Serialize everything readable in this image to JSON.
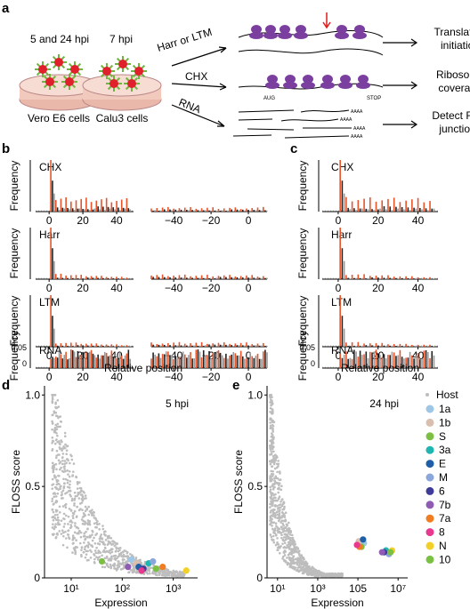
{
  "panel_letters": {
    "a": "a",
    "b": "b",
    "c": "c",
    "d": "d",
    "e": "e"
  },
  "panel_a": {
    "dish1_label": "5 and 24 hpi",
    "dish2_label": "7 hpi",
    "cell1_label": "Vero E6 cells",
    "cell2_label": "Calu3 cells",
    "arrows": [
      "Harr or LTM",
      "CHX",
      "RNA"
    ],
    "outcomes": [
      [
        "Translation",
        "initiation"
      ],
      [
        "Ribosome",
        "coverage"
      ],
      [
        "Detect RNA",
        "junctions"
      ]
    ],
    "start_codon": "AUG",
    "stop_codon": "STOP",
    "polya": "AAAA",
    "colors": {
      "ribosome": "#7b3fa0",
      "red_arrow": "#e01b1b",
      "virion": "#e0202a",
      "spike": "#6fb53f",
      "dish": "#f2c9bd"
    }
  },
  "metagene": {
    "ylabel": "Frequency",
    "xlabel": "Relative position",
    "rows": [
      "CHX",
      "Harr",
      "LTM",
      "RNA"
    ],
    "ticks_left_b": [
      "0",
      "20",
      "40"
    ],
    "ticks_right_b": [
      "−40",
      "−20",
      "0"
    ],
    "ticks_c": [
      "0",
      "20",
      "40"
    ],
    "rna_yticks": [
      "0",
      "0.05"
    ],
    "colors": {
      "frame0": "#e8542a",
      "frame1": "#222222",
      "frame2": "#9a9a9a"
    }
  },
  "chart_data": [
    {
      "type": "scatter",
      "panel": "d",
      "annotation": "5 hpi",
      "xlabel": "Expression",
      "ylabel": "FLOSS score",
      "x_scale": "log10",
      "xlim": [
        3,
        3000
      ],
      "ylim": [
        0,
        1.05
      ],
      "x_ticks": [
        "10¹",
        "10²",
        "10³"
      ],
      "y_ticks": [
        "0",
        "0.5",
        "1.0"
      ],
      "host_color": "#bdbdbd",
      "series": [
        {
          "name": "1a",
          "color": "#9ec6e6",
          "x": 150,
          "y": 0.1
        },
        {
          "name": "1b",
          "color": "#d8bfb0",
          "x": 190,
          "y": 0.08
        },
        {
          "name": "S",
          "color": "#7bc043",
          "x": 40,
          "y": 0.09
        },
        {
          "name": "3a",
          "color": "#1fb5b0",
          "x": 330,
          "y": 0.08
        },
        {
          "name": "E",
          "color": "#1f5fa8",
          "x": 210,
          "y": 0.06
        },
        {
          "name": "M",
          "color": "#8aa6dd",
          "x": 400,
          "y": 0.09
        },
        {
          "name": "6",
          "color": "#3e3b99",
          "x": 260,
          "y": 0.05
        },
        {
          "name": "7b",
          "color": "#8e5bb5",
          "x": 130,
          "y": 0.06
        },
        {
          "name": "7a",
          "color": "#f07d22",
          "x": 620,
          "y": 0.06
        },
        {
          "name": "8",
          "color": "#e8388f",
          "x": 240,
          "y": 0.04
        },
        {
          "name": "N",
          "color": "#f2d027",
          "x": 1800,
          "y": 0.04
        },
        {
          "name": "10",
          "color": "#7ac143",
          "x": 460,
          "y": 0.05
        }
      ]
    },
    {
      "type": "scatter",
      "panel": "e",
      "annotation": "24 hpi",
      "xlabel": "Expression",
      "ylabel": "FLOSS score",
      "x_scale": "log10",
      "xlim": [
        3,
        30000000
      ],
      "ylim": [
        0,
        1.05
      ],
      "x_ticks": [
        "10¹",
        "10³",
        "105",
        "10⁷"
      ],
      "y_ticks": [
        "0",
        "0.5",
        "1.0"
      ],
      "host_color": "#bdbdbd",
      "series": [
        {
          "name": "1a",
          "color": "#9ec6e6",
          "x": 200000,
          "y": 0.19
        },
        {
          "name": "1b",
          "color": "#d8bfb0",
          "x": 110000,
          "y": 0.2
        },
        {
          "name": "S",
          "color": "#7bc043",
          "x": 150000,
          "y": 0.17
        },
        {
          "name": "3a",
          "color": "#1fb5b0",
          "x": 2500000,
          "y": 0.15
        },
        {
          "name": "E",
          "color": "#1f5fa8",
          "x": 180000,
          "y": 0.21
        },
        {
          "name": "M",
          "color": "#8aa6dd",
          "x": 3500000,
          "y": 0.13
        },
        {
          "name": "6",
          "color": "#3e3b99",
          "x": 2000000,
          "y": 0.14
        },
        {
          "name": "7b",
          "color": "#8e5bb5",
          "x": 1600000,
          "y": 0.14
        },
        {
          "name": "7a",
          "color": "#f07d22",
          "x": 120000,
          "y": 0.17
        },
        {
          "name": "8",
          "color": "#e8388f",
          "x": 90000,
          "y": 0.18
        },
        {
          "name": "N",
          "color": "#f2d027",
          "x": 5000000,
          "y": 0.15
        },
        {
          "name": "10",
          "color": "#7ac143",
          "x": 4200000,
          "y": 0.14
        }
      ]
    }
  ],
  "legend": {
    "title": "Host",
    "items": [
      {
        "name": "1a",
        "color": "#9ec6e6"
      },
      {
        "name": "1b",
        "color": "#d8bfb0"
      },
      {
        "name": "S",
        "color": "#7bc043"
      },
      {
        "name": "3a",
        "color": "#1fb5b0"
      },
      {
        "name": "E",
        "color": "#1f5fa8"
      },
      {
        "name": "M",
        "color": "#8aa6dd"
      },
      {
        "name": "6",
        "color": "#3e3b99"
      },
      {
        "name": "7b",
        "color": "#8e5bb5"
      },
      {
        "name": "7a",
        "color": "#f07d22"
      },
      {
        "name": "8",
        "color": "#e8388f"
      },
      {
        "name": "N",
        "color": "#f2d027"
      },
      {
        "name": "10",
        "color": "#7ac143"
      }
    ]
  }
}
